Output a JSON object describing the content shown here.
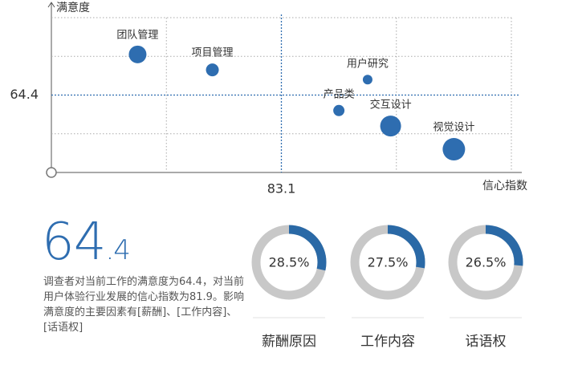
{
  "chart_data": [
    {
      "type": "scatter",
      "x_label": "信心指数",
      "y_label": "满意度",
      "xlim": [
        79.1,
        87.1
      ],
      "ylim": [
        60.4,
        68.4
      ],
      "xticks": [
        83.1
      ],
      "yticks": [
        64.4
      ],
      "color": "#2e6db0",
      "ref_color": "#2e6db0",
      "grid": true,
      "labels": [
        "团队管理",
        "项目管理",
        "用户研究",
        "产品类",
        "交互设计",
        "视觉设计"
      ],
      "x": [
        80.6,
        81.9,
        84.6,
        84.1,
        85.0,
        86.1
      ],
      "values": [
        66.5,
        65.7,
        65.2,
        63.6,
        62.8,
        61.6
      ],
      "sizes": [
        11,
        8,
        6,
        7,
        13,
        14
      ]
    },
    {
      "type": "donut",
      "categories": [
        "薪酬原因",
        "工作内容",
        "话语权"
      ],
      "values": [
        28.5,
        27.5,
        26.5
      ],
      "value_labels": [
        "28.5%",
        "27.5%",
        "26.5%"
      ],
      "color": "#2a69a6",
      "track_color": "#c8c8c8",
      "max": 100
    }
  ],
  "summary": {
    "value": "64.4",
    "text": "调查者对当前工作的满意度为64.4，对当前用户体验行业发展的信心指数为81.9。影响满意度的主要因素有[薪酬]、[工作内容]、[话语权]"
  }
}
